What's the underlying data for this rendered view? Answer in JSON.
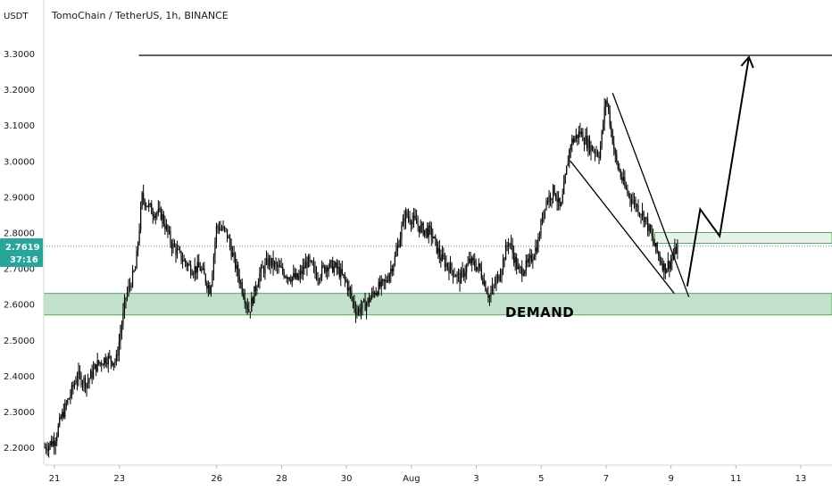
{
  "header": {
    "quote_unit": "USDT",
    "symbol_line": "TomoChain / TetherUS, 1h, BINANCE"
  },
  "price_tag": {
    "price": "2.7619",
    "countdown": "37:16",
    "color": "#26a69a"
  },
  "colors": {
    "candles": "#000000",
    "zone_fill": "#b9dcc4",
    "zone_border": "#4caf50",
    "drawings": "#000000",
    "axis_text": "#131722",
    "grid": "#eef0f4"
  },
  "chart_data": {
    "type": "candlestick",
    "title": "TomoChain / TetherUS, 1h, BINANCE",
    "ylabel": "USDT",
    "ylim": [
      2.15,
      3.33
    ],
    "yticks": [
      "3.3000",
      "3.2000",
      "3.1000",
      "3.0000",
      "2.9000",
      "2.8000",
      "2.7000",
      "2.6000",
      "2.5000",
      "2.4000",
      "2.3000",
      "2.2000"
    ],
    "xticks": [
      {
        "label": "21",
        "day": 21
      },
      {
        "label": "23",
        "day": 23
      },
      {
        "label": "26",
        "day": 26
      },
      {
        "label": "28",
        "day": 28
      },
      {
        "label": "30",
        "day": 30
      },
      {
        "label": "Aug",
        "day": 32
      },
      {
        "label": "3",
        "day": 34
      },
      {
        "label": "5",
        "day": 36
      },
      {
        "label": "7",
        "day": 38
      },
      {
        "label": "9",
        "day": 40
      },
      {
        "label": "11",
        "day": 42
      },
      {
        "label": "13",
        "day": 44
      }
    ],
    "series": [
      {
        "x": [
          20.7,
          21.0,
          21.2,
          21.5,
          21.7,
          22.0,
          22.3,
          22.6,
          22.9,
          23.0,
          23.2,
          23.5,
          23.7,
          24.0,
          24.3,
          24.6,
          24.9,
          25.2,
          25.5,
          25.8,
          26.0,
          26.3,
          26.6,
          27.0,
          27.3,
          27.6,
          27.9,
          28.2,
          28.5,
          28.8,
          29.1,
          29.4,
          29.7,
          30.0,
          30.3,
          30.6,
          30.9,
          31.2,
          31.5,
          31.8,
          32.0,
          32.3,
          32.6,
          32.9,
          33.2,
          33.5,
          33.8,
          34.1,
          34.4,
          34.7,
          35.0,
          35.3,
          35.6,
          35.9,
          36.1,
          36.4,
          36.6,
          36.9,
          37.2,
          37.5,
          37.8,
          38.0,
          38.3,
          38.6,
          38.9,
          39.2,
          39.5,
          39.8,
          40.0,
          40.2
        ],
        "y": [
          2.2,
          2.22,
          2.28,
          2.35,
          2.4,
          2.38,
          2.43,
          2.45,
          2.44,
          2.5,
          2.62,
          2.7,
          2.9,
          2.86,
          2.85,
          2.77,
          2.73,
          2.7,
          2.7,
          2.64,
          2.82,
          2.8,
          2.7,
          2.58,
          2.68,
          2.72,
          2.7,
          2.68,
          2.67,
          2.72,
          2.68,
          2.71,
          2.7,
          2.66,
          2.58,
          2.6,
          2.64,
          2.66,
          2.73,
          2.85,
          2.84,
          2.81,
          2.8,
          2.73,
          2.7,
          2.67,
          2.72,
          2.7,
          2.62,
          2.68,
          2.78,
          2.69,
          2.71,
          2.77,
          2.88,
          2.92,
          2.86,
          3.05,
          3.08,
          3.04,
          3.02,
          3.18,
          3.0,
          2.92,
          2.88,
          2.84,
          2.76,
          2.7,
          2.72,
          2.76
        ]
      }
    ],
    "zones": [
      {
        "name": "demand",
        "label": "DEMAND",
        "y_low": 2.57,
        "y_high": 2.63,
        "x_start": 20.5,
        "x_end": 45
      },
      {
        "name": "resistance-box",
        "label": "",
        "y_low": 2.77,
        "y_high": 2.8,
        "x_start": 39.5,
        "x_end": 45
      }
    ],
    "lines": [
      {
        "name": "target-line",
        "points": [
          [
            23.6,
            3.295
          ],
          [
            45,
            3.295
          ]
        ]
      },
      {
        "name": "channel-upper",
        "points": [
          [
            38.2,
            3.19
          ],
          [
            40.55,
            2.62
          ]
        ]
      },
      {
        "name": "channel-lower",
        "points": [
          [
            36.9,
            3.0
          ],
          [
            40.1,
            2.63
          ]
        ]
      },
      {
        "name": "projection-path",
        "points": [
          [
            40.5,
            2.65
          ],
          [
            40.9,
            2.865
          ],
          [
            41.5,
            2.79
          ],
          [
            42.4,
            3.29
          ]
        ]
      }
    ],
    "last_price": 2.7619,
    "grid": false
  }
}
